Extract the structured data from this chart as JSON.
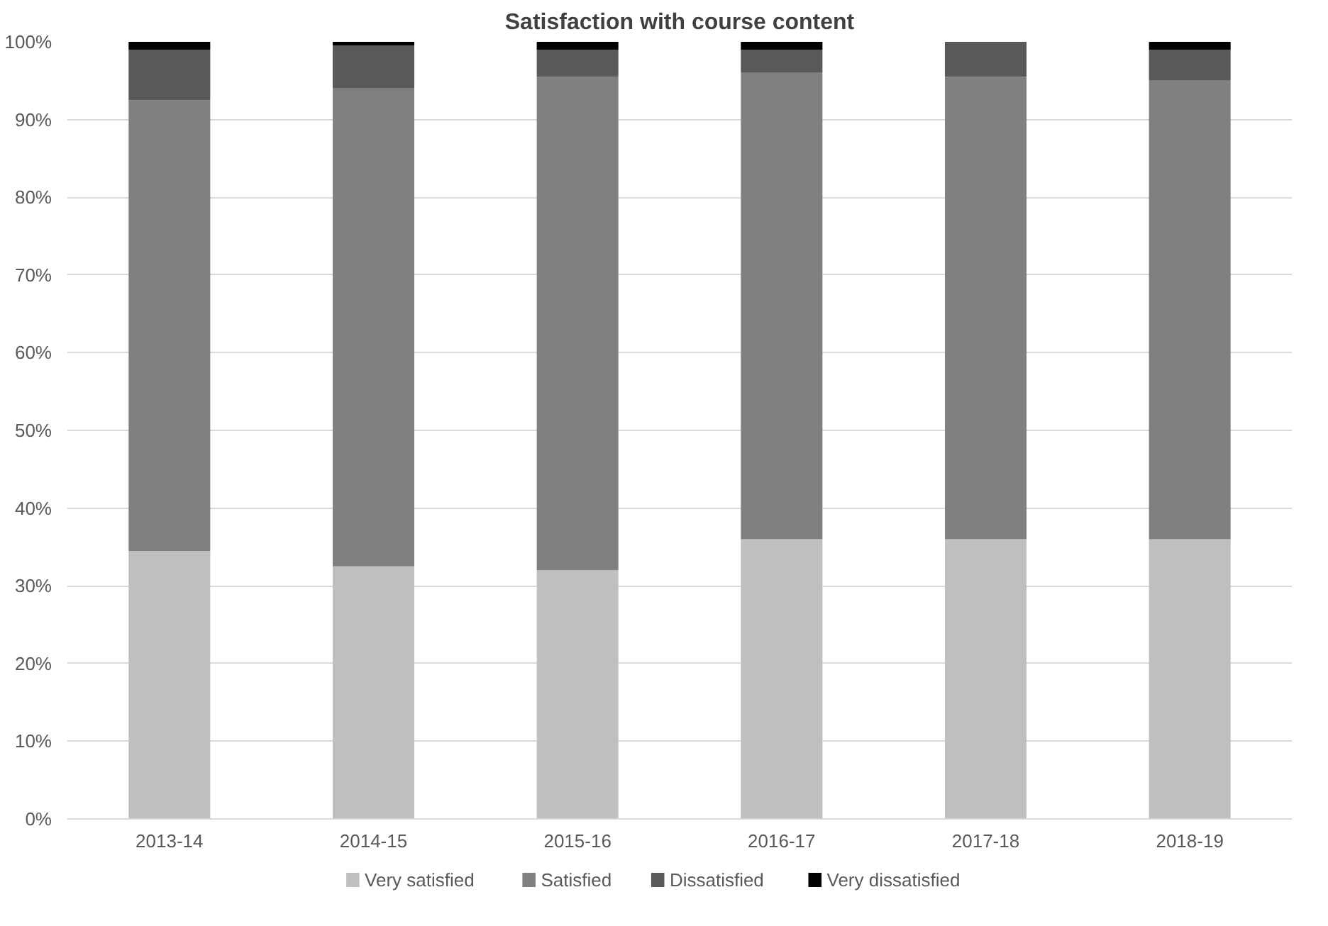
{
  "chart_data": {
    "type": "bar",
    "title": "Satisfaction with course content",
    "stacked": true,
    "categories": [
      "2013-14",
      "2014-15",
      "2015-16",
      "2016-17",
      "2017-18",
      "2018-19"
    ],
    "series": [
      {
        "name": "Very satisfied",
        "color": "#bfbfbf",
        "values": [
          34.5,
          32.5,
          32,
          36,
          36,
          36
        ]
      },
      {
        "name": "Satisfied",
        "color": "#808080",
        "values": [
          58,
          61.5,
          63.5,
          60,
          59.5,
          59
        ]
      },
      {
        "name": "Dissatisfied",
        "color": "#595959",
        "values": [
          6.5,
          5.5,
          3.5,
          3,
          4.5,
          4
        ]
      },
      {
        "name": "Very dissatisfied",
        "color": "#000000",
        "values": [
          1,
          0.5,
          1,
          1,
          0,
          1
        ]
      }
    ],
    "ylim": [
      0,
      100
    ],
    "yticks": [
      {
        "value": 0,
        "label": "0%"
      },
      {
        "value": 10,
        "label": "10%"
      },
      {
        "value": 20,
        "label": "20%"
      },
      {
        "value": 30,
        "label": "30%"
      },
      {
        "value": 40,
        "label": "40%"
      },
      {
        "value": 50,
        "label": "50%"
      },
      {
        "value": 60,
        "label": "60%"
      },
      {
        "value": 70,
        "label": "70%"
      },
      {
        "value": 80,
        "label": "80%"
      },
      {
        "value": 90,
        "label": "90%"
      },
      {
        "value": 100,
        "label": "100%"
      }
    ],
    "grid": "y",
    "legend": "bottom"
  }
}
